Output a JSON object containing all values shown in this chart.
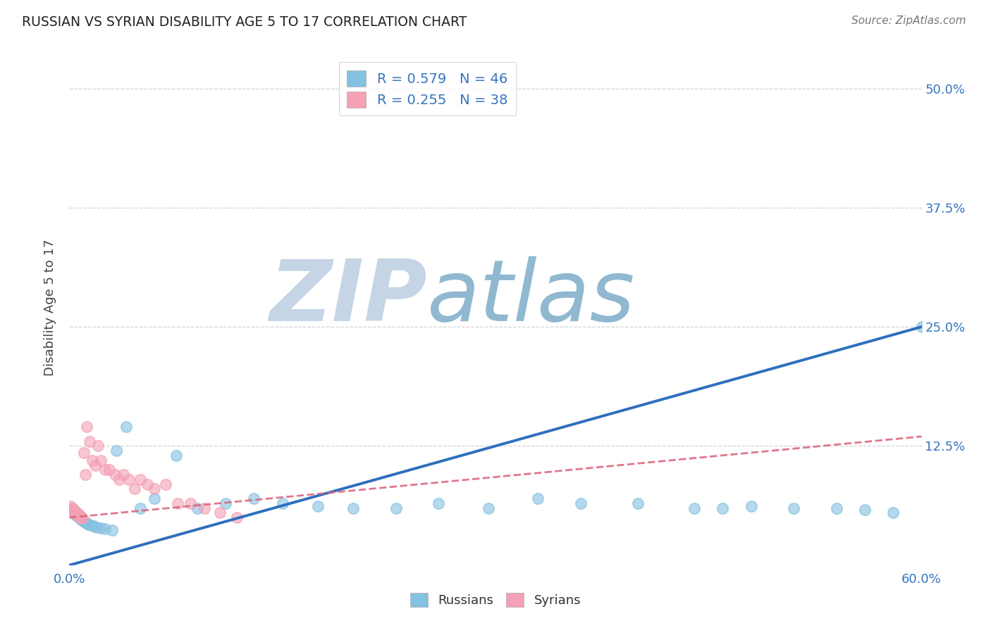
{
  "title": "RUSSIAN VS SYRIAN DISABILITY AGE 5 TO 17 CORRELATION CHART",
  "source": "Source: ZipAtlas.com",
  "ylabel": "Disability Age 5 to 17",
  "xlim": [
    0.0,
    0.6
  ],
  "ylim": [
    0.0,
    0.54
  ],
  "legend_r1": "R = 0.579",
  "legend_n1": "N = 46",
  "legend_r2": "R = 0.255",
  "legend_n2": "N = 38",
  "blue_color": "#85c1e0",
  "pink_color": "#f4a0b5",
  "trend_blue": "#2e6fbd",
  "trend_pink": "#d9607a",
  "text_blue": "#3575c0",
  "watermark_zip_color": "#c8d8ea",
  "watermark_atlas_color": "#a8c4d8",
  "rus_x": [
    0.002,
    0.003,
    0.003,
    0.004,
    0.004,
    0.005,
    0.005,
    0.006,
    0.007,
    0.008,
    0.009,
    0.01,
    0.011,
    0.012,
    0.013,
    0.015,
    0.017,
    0.019,
    0.022,
    0.025,
    0.03,
    0.033,
    0.04,
    0.05,
    0.06,
    0.075,
    0.09,
    0.11,
    0.13,
    0.15,
    0.175,
    0.2,
    0.23,
    0.26,
    0.295,
    0.33,
    0.36,
    0.4,
    0.44,
    0.46,
    0.48,
    0.51,
    0.54,
    0.56,
    0.58,
    0.6
  ],
  "rus_y": [
    0.06,
    0.058,
    0.056,
    0.055,
    0.054,
    0.053,
    0.052,
    0.051,
    0.05,
    0.048,
    0.047,
    0.046,
    0.045,
    0.044,
    0.043,
    0.042,
    0.041,
    0.04,
    0.039,
    0.038,
    0.037,
    0.12,
    0.145,
    0.06,
    0.07,
    0.115,
    0.06,
    0.065,
    0.07,
    0.065,
    0.062,
    0.06,
    0.06,
    0.065,
    0.06,
    0.07,
    0.065,
    0.065,
    0.06,
    0.06,
    0.062,
    0.06,
    0.06,
    0.058,
    0.055,
    0.25
  ],
  "syr_x": [
    0.001,
    0.002,
    0.002,
    0.003,
    0.003,
    0.004,
    0.004,
    0.005,
    0.005,
    0.006,
    0.007,
    0.007,
    0.008,
    0.009,
    0.01,
    0.011,
    0.012,
    0.014,
    0.016,
    0.018,
    0.02,
    0.022,
    0.025,
    0.028,
    0.032,
    0.035,
    0.038,
    0.042,
    0.046,
    0.05,
    0.055,
    0.06,
    0.068,
    0.076,
    0.085,
    0.095,
    0.106,
    0.118
  ],
  "syr_y": [
    0.062,
    0.06,
    0.058,
    0.059,
    0.057,
    0.057,
    0.055,
    0.056,
    0.054,
    0.054,
    0.052,
    0.05,
    0.051,
    0.049,
    0.118,
    0.095,
    0.145,
    0.13,
    0.11,
    0.105,
    0.125,
    0.11,
    0.1,
    0.1,
    0.095,
    0.09,
    0.095,
    0.09,
    0.08,
    0.09,
    0.085,
    0.08,
    0.085,
    0.065,
    0.065,
    0.06,
    0.055,
    0.05
  ],
  "blue_trend_x": [
    0.0,
    0.6
  ],
  "blue_trend_y": [
    0.0,
    0.25
  ],
  "pink_trend_x": [
    0.0,
    0.6
  ],
  "pink_trend_y": [
    0.05,
    0.135
  ]
}
